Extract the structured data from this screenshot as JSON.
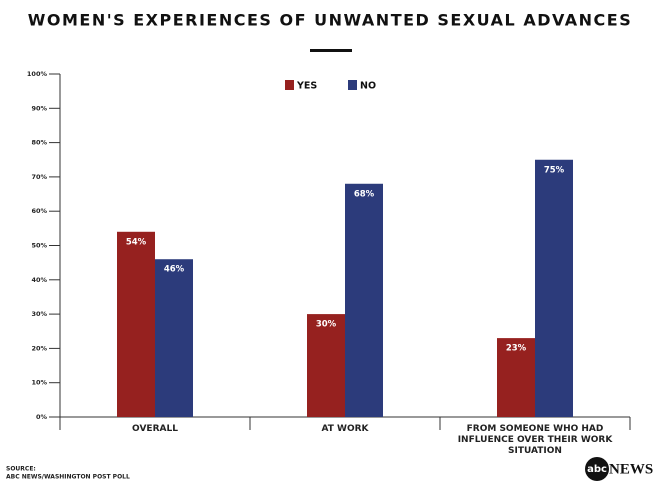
{
  "chart_data": {
    "type": "bar",
    "title": "WOMEN'S EXPERIENCES OF UNWANTED SEXUAL ADVANCES",
    "categories": [
      "OVERALL",
      "AT WORK",
      "FROM SOMEONE WHO HAD INFLUENCE OVER THEIR WORK SITUATION"
    ],
    "series": [
      {
        "name": "YES",
        "color": "#96211f",
        "values": [
          54,
          30,
          23
        ],
        "value_labels": [
          "54%",
          "30%",
          "23%"
        ]
      },
      {
        "name": "NO",
        "color": "#2c3b7b",
        "values": [
          46,
          68,
          75
        ],
        "value_labels": [
          "46%",
          "68%",
          "75%"
        ]
      }
    ],
    "ylim": [
      0,
      100
    ],
    "yticks": [
      {
        "value": 0,
        "label": "0%"
      },
      {
        "value": 10,
        "label": "10%"
      },
      {
        "value": 20,
        "label": "20%"
      },
      {
        "value": 30,
        "label": "30%"
      },
      {
        "value": 40,
        "label": "40%"
      },
      {
        "value": 50,
        "label": "50%"
      },
      {
        "value": 60,
        "label": "60%"
      },
      {
        "value": 70,
        "label": "70%"
      },
      {
        "value": 80,
        "label": "80%"
      },
      {
        "value": 90,
        "label": "90%"
      },
      {
        "value": 100,
        "label": "100%"
      }
    ],
    "source": [
      "SOURCE:",
      "ABC NEWS/WASHINGTON POST POLL"
    ],
    "logo": {
      "mark": "abc",
      "text": "NEWS"
    }
  }
}
